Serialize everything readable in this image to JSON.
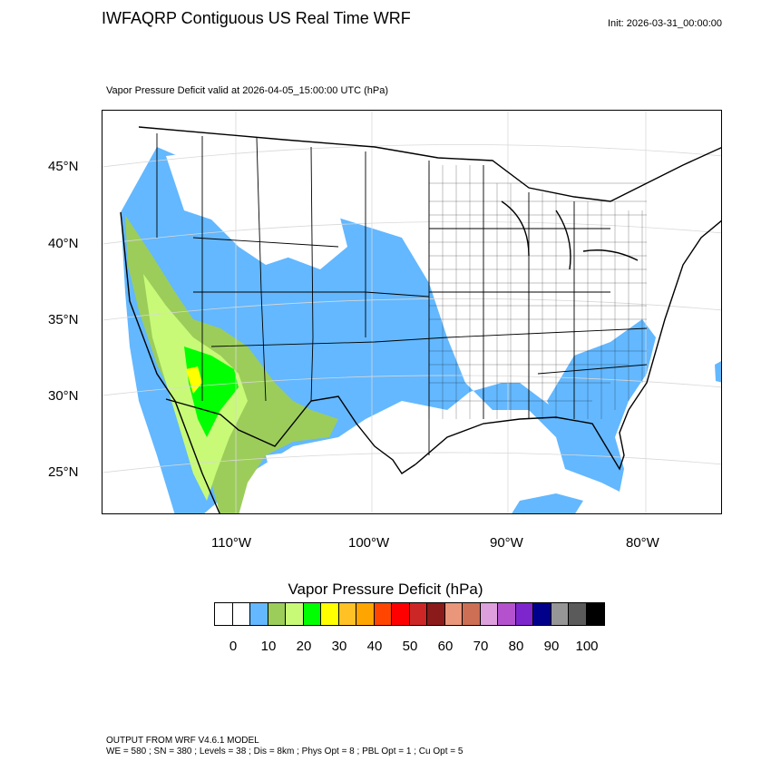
{
  "header": {
    "title": "IWFAQRP Contiguous US Real Time WRF",
    "init": "Init: 2026-03-31_00:00:00",
    "subtitle": "Vapor Pressure Deficit valid at 2026-04-05_15:00:00 UTC   (hPa)"
  },
  "map": {
    "lat_labels": [
      "45°N",
      "40°N",
      "35°N",
      "30°N",
      "25°N"
    ],
    "lon_labels": [
      "110°W",
      "100°W",
      "90°W",
      "80°W"
    ]
  },
  "colorbar": {
    "title": "Vapor Pressure Deficit  (hPa)",
    "colors": [
      "#ffffff",
      "#ffffff",
      "#63b8ff",
      "#9ccd5a",
      "#c8fa78",
      "#00ff00",
      "#ffff00",
      "#ffc125",
      "#ffa500",
      "#ff4500",
      "#ff0000",
      "#cd2626",
      "#8b1a1a",
      "#e9967a",
      "#cd6f55",
      "#dda0dd",
      "#b452cd",
      "#7d26cd",
      "#00008b",
      "#969696",
      "#5a5a5a",
      "#000000"
    ],
    "tick_labels": [
      "0",
      "10",
      "20",
      "30",
      "40",
      "50",
      "60",
      "70",
      "80",
      "90",
      "100"
    ]
  },
  "footer": {
    "line1": "OUTPUT FROM WRF V4.6.1 MODEL",
    "line2": "WE = 580 ; SN = 380 ; Levels = 38 ; Dis = 8km ; Phys Opt = 8 ; PBL Opt = 1 ; Cu Opt = 5"
  }
}
